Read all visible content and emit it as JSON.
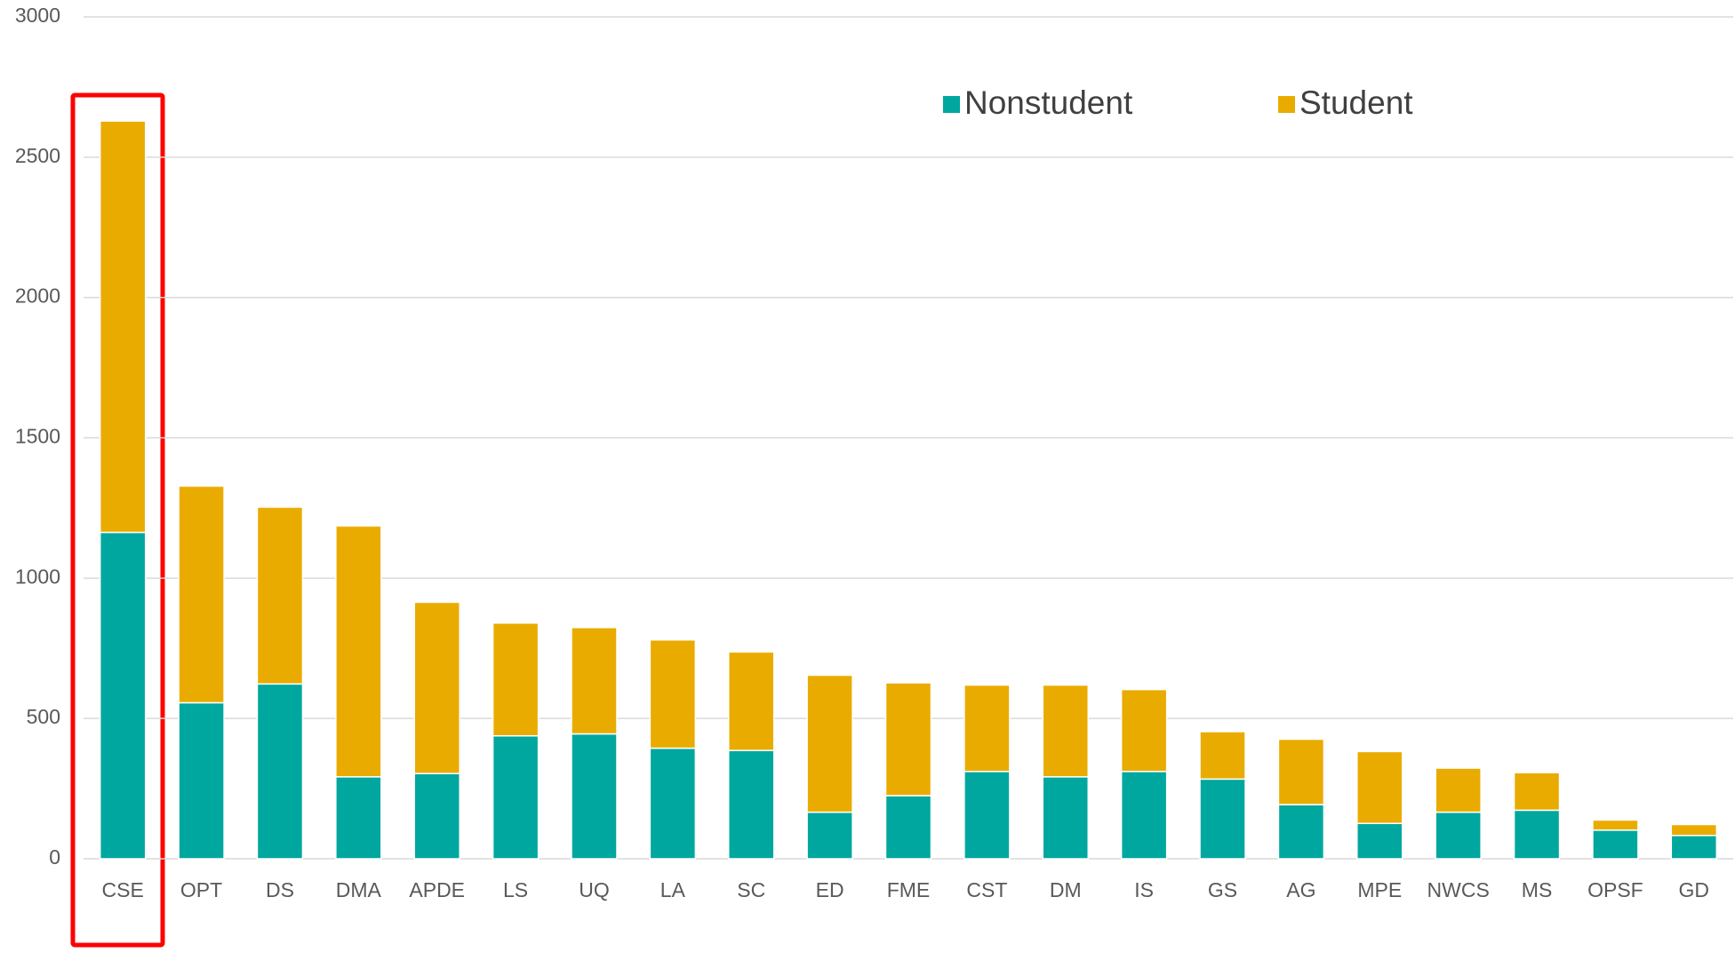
{
  "chart_data": {
    "type": "stacked_bar",
    "categories": [
      "CSE",
      "OPT",
      "DS",
      "DMA",
      "APDE",
      "LS",
      "UQ",
      "LA",
      "SC",
      "ED",
      "FME",
      "CST",
      "DM",
      "IS",
      "GS",
      "AG",
      "MPE",
      "NWCS",
      "MS",
      "OPSF",
      "GD"
    ],
    "series": [
      {
        "name": "Nonstudent",
        "color": "#00a79f",
        "values": [
          1163,
          556,
          623,
          292,
          304,
          438,
          445,
          394,
          386,
          166,
          225,
          311,
          292,
          311,
          284,
          193,
          126,
          166,
          173,
          102,
          83
        ]
      },
      {
        "name": "Student",
        "color": "#eaab00",
        "values": [
          1466,
          772,
          630,
          894,
          610,
          402,
          379,
          386,
          351,
          488,
          402,
          308,
          327,
          292,
          169,
          233,
          256,
          157,
          134,
          36,
          39
        ]
      }
    ],
    "ylim": [
      0,
      3000
    ],
    "yticks": [
      0,
      500,
      1000,
      1500,
      2000,
      2500,
      3000
    ],
    "grid": true,
    "legend": "top"
  }
}
